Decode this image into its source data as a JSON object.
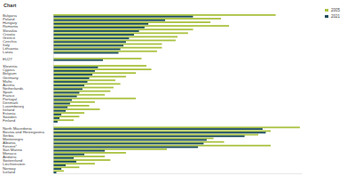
{
  "chart_data": {
    "type": "bar",
    "orientation": "horizontal",
    "title": "Chart",
    "categories": [
      "Bulgaria",
      "Poland",
      "Hungary",
      "Romania",
      "Slovakia",
      "Croatia",
      "Greece",
      "Czechia",
      "Italy",
      "Lithuania",
      "Latvia",
      null,
      "EU27",
      null,
      "Slovenia",
      "Cyprus",
      "Belgium",
      "Germany",
      "Malta",
      "Austria",
      "Netherlands",
      "Spain",
      "France",
      "Portugal",
      "Denmark",
      "Luxembourg",
      "Ireland",
      "Estonia",
      "Sweden",
      "Finland",
      null,
      "North Macedonia",
      "Bosnia and Herzegovina",
      "Serbia",
      "Montenegro",
      "Albania",
      "Kosovo*",
      "San Marino",
      "Monaco",
      "Andorra",
      "Switzerland",
      "Liechtenstein",
      "Norway",
      "Iceland"
    ],
    "series": [
      {
        "name": "2005",
        "color": "#a9c23f",
        "values": [
          35.8,
          27,
          25.3,
          28.3,
          22.5,
          21.7,
          20,
          19.7,
          17.5,
          17.5,
          16.7,
          null,
          14.2,
          null,
          15,
          15.8,
          13.3,
          11.7,
          10,
          10.8,
          9.7,
          9.2,
          8.3,
          13.3,
          6.7,
          5.8,
          7.5,
          5,
          4.2,
          3.3,
          null,
          39.7,
          35,
          33,
          25.8,
          27.5,
          35,
          18.3,
          11.7,
          8.3,
          9.2,
          6.7,
          4.2,
          1.7
        ]
      },
      {
        "name": "2021",
        "color": "#17495a",
        "values": [
          22.5,
          18,
          15.3,
          14.7,
          13.8,
          13,
          12.2,
          11.7,
          11.3,
          10.8,
          10.5,
          null,
          8,
          null,
          7.2,
          6.7,
          6.3,
          5.8,
          5.5,
          5,
          4.7,
          4.2,
          3.8,
          3,
          2.7,
          2.3,
          2,
          1.3,
          1,
          0.7,
          null,
          33.7,
          34.2,
          30.8,
          24.7,
          24.2,
          23.3,
          8.3,
          5,
          3.3,
          3.7,
          2,
          1.3,
          0.5
        ]
      }
    ],
    "xlim": [
      0,
      40
    ],
    "tick_labels": "y",
    "legend": "top-right",
    "grid": false
  }
}
